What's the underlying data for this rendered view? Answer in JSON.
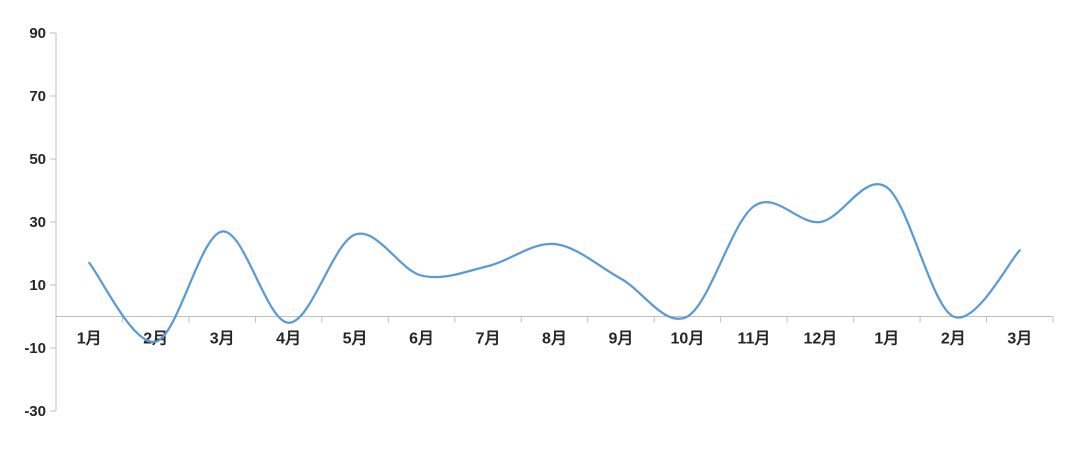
{
  "page": {
    "background_color": "#ffffff"
  },
  "chart_data": {
    "type": "line",
    "smooth": true,
    "categories": [
      "1月",
      "2月",
      "3月",
      "4月",
      "5月",
      "6月",
      "7月",
      "8月",
      "9月",
      "10月",
      "11月",
      "12月",
      "1月",
      "2月",
      "3月"
    ],
    "series": [
      {
        "name": "",
        "values": [
          17,
          -8,
          27,
          -2,
          26,
          13,
          16,
          23,
          12,
          0,
          35,
          30,
          41,
          0,
          21
        ]
      }
    ],
    "title": "",
    "xlabel": "",
    "ylabel": "",
    "ylim": [
      -30,
      90
    ],
    "y_ticks": [
      90,
      70,
      50,
      30,
      10,
      -10,
      -30
    ],
    "x_axis_crosses_at": 0,
    "grid": false,
    "legend": false,
    "line_color": "#5B9BD5",
    "axis_color": "#BFBFBF",
    "label_color": "#262626"
  }
}
